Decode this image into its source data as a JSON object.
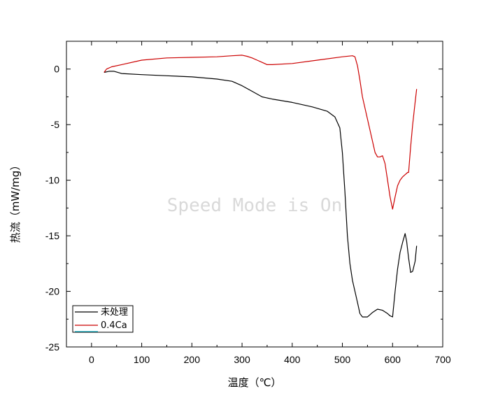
{
  "chart_data": {
    "type": "line",
    "xlabel": "温度（℃）",
    "ylabel": "热流（mW/mg）",
    "xlim": [
      -50,
      700
    ],
    "ylim": [
      -25,
      2.5
    ],
    "x_ticks": [
      0,
      100,
      200,
      300,
      400,
      500,
      600,
      700
    ],
    "y_ticks": [
      0,
      -5,
      -10,
      -15,
      -20,
      -25
    ],
    "grid": false,
    "legend_position": "bottom-left",
    "watermark": "Speed Mode is On",
    "series": [
      {
        "name": "未处理",
        "color": "#000000",
        "x": [
          25,
          35,
          45,
          60,
          100,
          150,
          200,
          250,
          280,
          300,
          320,
          340,
          360,
          400,
          440,
          470,
          485,
          495,
          500,
          505,
          510,
          515,
          520,
          525,
          530,
          535,
          540,
          545,
          550,
          555,
          560,
          570,
          580,
          590,
          595,
          600,
          605,
          610,
          615,
          620,
          625,
          628,
          632,
          636,
          640,
          645,
          648
        ],
        "y": [
          -0.3,
          -0.2,
          -0.2,
          -0.4,
          -0.5,
          -0.6,
          -0.7,
          -0.9,
          -1.1,
          -1.5,
          -2.0,
          -2.5,
          -2.7,
          -3.0,
          -3.4,
          -3.8,
          -4.3,
          -5.3,
          -7.5,
          -11.0,
          -15.0,
          -17.5,
          -19.0,
          -20.0,
          -21.0,
          -22.0,
          -22.3,
          -22.3,
          -22.3,
          -22.1,
          -21.9,
          -21.6,
          -21.7,
          -22.0,
          -22.2,
          -22.3,
          -20.0,
          -18.0,
          -16.5,
          -15.6,
          -14.8,
          -15.5,
          -17.0,
          -18.3,
          -18.2,
          -17.3,
          -15.9
        ]
      },
      {
        "name": "0.4Ca",
        "color": "#cc0000",
        "x": [
          25,
          30,
          40,
          60,
          100,
          150,
          200,
          250,
          280,
          300,
          310,
          320,
          330,
          340,
          350,
          360,
          400,
          450,
          500,
          520,
          525,
          530,
          535,
          540,
          550,
          560,
          565,
          570,
          575,
          580,
          585,
          590,
          595,
          600,
          605,
          610,
          615,
          620,
          625,
          630,
          632,
          636,
          640,
          645,
          648
        ],
        "y": [
          -0.3,
          0.0,
          0.2,
          0.4,
          0.8,
          1.0,
          1.05,
          1.1,
          1.2,
          1.25,
          1.15,
          1.0,
          0.8,
          0.6,
          0.4,
          0.4,
          0.5,
          0.8,
          1.1,
          1.2,
          1.1,
          0.3,
          -1.0,
          -2.5,
          -4.5,
          -6.5,
          -7.5,
          -7.9,
          -7.9,
          -7.8,
          -8.5,
          -10.0,
          -11.5,
          -12.6,
          -11.5,
          -10.5,
          -10.0,
          -9.7,
          -9.5,
          -9.3,
          -9.3,
          -7.0,
          -5.0,
          -3.0,
          -1.8
        ]
      }
    ]
  }
}
